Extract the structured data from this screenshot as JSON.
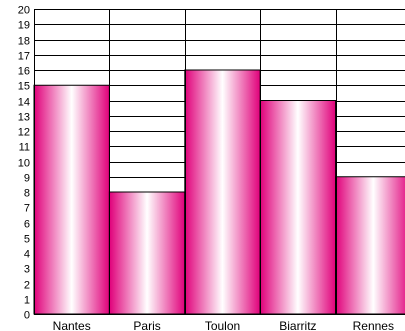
{
  "chart_data": {
    "type": "bar",
    "categories": [
      "Nantes",
      "Paris",
      "Toulon",
      "Biarritz",
      "Rennes"
    ],
    "values": [
      15,
      8,
      16,
      14,
      9
    ],
    "ylim": [
      0,
      20
    ],
    "yticks": [
      0,
      1,
      2,
      3,
      4,
      5,
      6,
      7,
      8,
      9,
      10,
      11,
      12,
      13,
      14,
      15,
      16,
      17,
      18,
      19,
      20
    ],
    "grid": true,
    "title": "",
    "xlabel": "",
    "ylabel": "",
    "colors": {
      "bar_edge": "#e0007a",
      "bar_center": "#ffffff",
      "grid": "#000000",
      "axis": "#000000"
    }
  }
}
